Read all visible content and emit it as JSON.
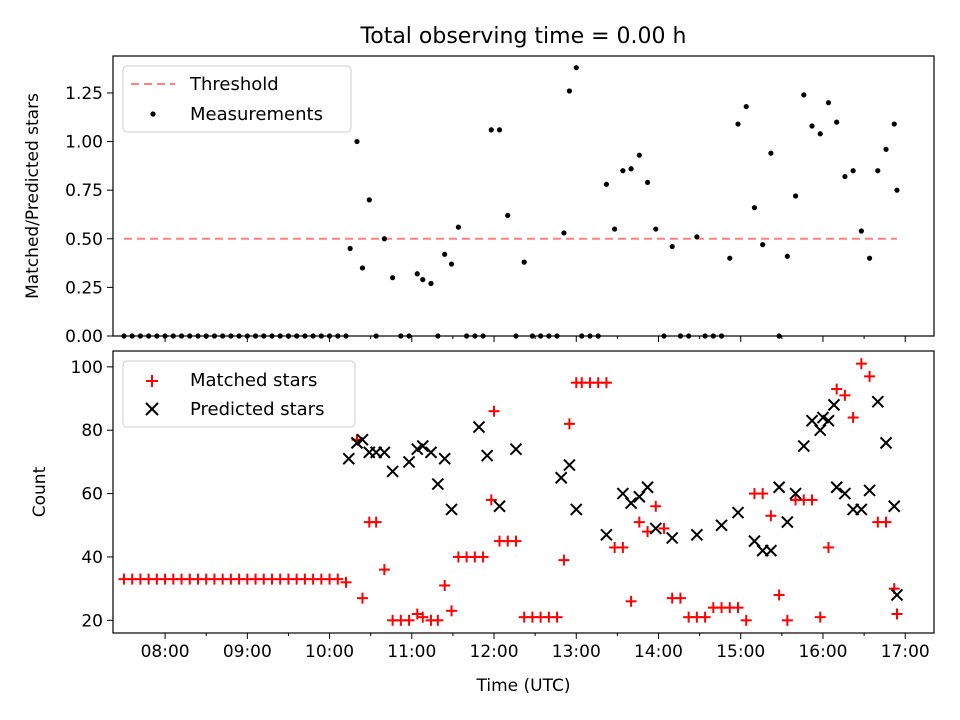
{
  "chart_data": [
    {
      "type": "scatter",
      "title": "Total observing time = 0.00 h",
      "ylabel": "Matched/Predicted stars",
      "xlim": [
        "07:22",
        "17:21"
      ],
      "ylim": [
        0,
        1.44
      ],
      "yticks": [
        "0.00",
        "0.25",
        "0.50",
        "0.75",
        "1.00",
        "1.25"
      ],
      "legend_position": "top-left",
      "series": [
        {
          "name": "Threshold",
          "kind": "dashed-line",
          "color": "#ff8080",
          "x": [
            "07:30",
            "16:54"
          ],
          "y": [
            0.5,
            0.5
          ]
        },
        {
          "name": "Measurements",
          "kind": "points",
          "color": "#000000",
          "x": [
            "07:30",
            "07:36",
            "07:42",
            "07:48",
            "07:54",
            "08:00",
            "08:06",
            "08:12",
            "08:18",
            "08:24",
            "08:30",
            "08:36",
            "08:42",
            "08:48",
            "08:54",
            "09:00",
            "09:06",
            "09:12",
            "09:18",
            "09:24",
            "09:30",
            "09:36",
            "09:42",
            "09:48",
            "09:54",
            "10:00",
            "10:06",
            "10:12",
            "10:15",
            "10:20",
            "10:24",
            "10:29",
            "10:34",
            "10:40",
            "10:46",
            "10:52",
            "10:58",
            "11:04",
            "11:08",
            "11:14",
            "11:19",
            "11:24",
            "11:29",
            "11:34",
            "11:40",
            "11:46",
            "11:52",
            "11:58",
            "12:04",
            "12:10",
            "12:16",
            "12:22",
            "12:28",
            "12:34",
            "12:40",
            "12:46",
            "12:51",
            "12:55",
            "13:00",
            "13:04",
            "13:10",
            "13:16",
            "13:22",
            "13:28",
            "13:34",
            "13:40",
            "13:46",
            "13:52",
            "13:58",
            "14:04",
            "14:10",
            "14:16",
            "14:22",
            "14:28",
            "14:34",
            "14:40",
            "14:46",
            "14:52",
            "14:58",
            "15:04",
            "15:10",
            "15:16",
            "15:22",
            "15:28",
            "15:34",
            "15:40",
            "15:46",
            "15:52",
            "15:58",
            "16:04",
            "16:10",
            "16:16",
            "16:22",
            "16:28",
            "16:34",
            "16:40",
            "16:46",
            "16:52",
            "16:54"
          ],
          "y": [
            0,
            0,
            0,
            0,
            0,
            0,
            0,
            0,
            0,
            0,
            0,
            0,
            0,
            0,
            0,
            0,
            0,
            0,
            0,
            0,
            0,
            0,
            0,
            0,
            0,
            0,
            0,
            0,
            0.45,
            1.0,
            0.35,
            0.7,
            0,
            0.5,
            0.3,
            0,
            0,
            0.32,
            0.29,
            0.27,
            0,
            0.42,
            0.37,
            0.56,
            0,
            0,
            0,
            1.06,
            1.06,
            0.62,
            0,
            0.38,
            0,
            0,
            0,
            0,
            0.53,
            1.26,
            1.38,
            0,
            0,
            0,
            0.78,
            0.55,
            0.85,
            0.86,
            0.93,
            0.79,
            0.55,
            0,
            0.46,
            0,
            0,
            0.51,
            0,
            0,
            0,
            0.4,
            1.09,
            1.18,
            0.66,
            0.47,
            0.94,
            0,
            0.41,
            0.72,
            1.24,
            1.08,
            1.04,
            1.2,
            1.1,
            0.82,
            0.85,
            0.54,
            0.4,
            0.85,
            0.96,
            1.09,
            0.75
          ],
          "note": ""
        }
      ]
    },
    {
      "type": "scatter",
      "xlabel": "Time (UTC)",
      "ylabel": "Count",
      "xlim": [
        "07:22",
        "17:21"
      ],
      "ylim": [
        16,
        105
      ],
      "xticks": [
        "08:00",
        "09:00",
        "10:00",
        "11:00",
        "12:00",
        "13:00",
        "14:00",
        "15:00",
        "16:00",
        "17:00"
      ],
      "yticks": [
        "20",
        "40",
        "60",
        "80",
        "100"
      ],
      "legend_position": "top-left",
      "series": [
        {
          "name": "Matched stars",
          "marker": "plus",
          "color": "#ff0000",
          "x": [
            "07:30",
            "07:36",
            "07:42",
            "07:48",
            "07:54",
            "08:00",
            "08:06",
            "08:12",
            "08:18",
            "08:24",
            "08:30",
            "08:36",
            "08:42",
            "08:48",
            "08:54",
            "09:00",
            "09:06",
            "09:12",
            "09:18",
            "09:24",
            "09:30",
            "09:36",
            "09:42",
            "09:48",
            "09:54",
            "10:00",
            "10:06",
            "10:12",
            "10:20",
            "10:24",
            "10:29",
            "10:34",
            "10:40",
            "10:46",
            "10:52",
            "10:58",
            "11:04",
            "11:08",
            "11:14",
            "11:19",
            "11:24",
            "11:29",
            "11:34",
            "11:40",
            "11:46",
            "11:52",
            "11:58",
            "12:00",
            "12:04",
            "12:10",
            "12:16",
            "12:22",
            "12:28",
            "12:34",
            "12:40",
            "12:46",
            "12:51",
            "12:55",
            "13:00",
            "13:04",
            "13:10",
            "13:16",
            "13:22",
            "13:28",
            "13:34",
            "13:40",
            "13:46",
            "13:52",
            "13:58",
            "14:04",
            "14:10",
            "14:16",
            "14:22",
            "14:28",
            "14:34",
            "14:40",
            "14:46",
            "14:52",
            "14:58",
            "15:04",
            "15:10",
            "15:16",
            "15:22",
            "15:28",
            "15:34",
            "15:40",
            "15:46",
            "15:52",
            "15:58",
            "16:04",
            "16:10",
            "16:16",
            "16:22",
            "16:28",
            "16:34",
            "16:40",
            "16:46",
            "16:52",
            "16:54"
          ],
          "y": [
            33,
            33,
            33,
            33,
            33,
            33,
            33,
            33,
            33,
            33,
            33,
            33,
            33,
            33,
            33,
            33,
            33,
            33,
            33,
            33,
            33,
            33,
            33,
            33,
            33,
            33,
            33,
            32,
            77,
            27,
            51,
            51,
            36,
            20,
            20,
            20,
            22,
            21,
            20,
            20,
            31,
            23,
            40,
            40,
            40,
            40,
            58,
            86,
            45,
            45,
            45,
            21,
            21,
            21,
            21,
            21,
            39,
            82,
            95,
            95,
            95,
            95,
            95,
            43,
            43,
            26,
            51,
            48,
            56,
            49,
            27,
            27,
            21,
            21,
            21,
            24,
            24,
            24,
            24,
            20,
            60,
            60,
            53,
            28,
            20,
            58,
            58,
            58,
            21,
            43,
            93,
            91,
            84,
            101,
            97,
            51,
            51,
            30,
            22
          ],
          "note": ""
        },
        {
          "name": "Predicted stars",
          "marker": "x",
          "color": "#000000",
          "x": [
            "10:14",
            "10:20",
            "10:24",
            "10:29",
            "10:34",
            "10:40",
            "10:46",
            "10:58",
            "11:04",
            "11:08",
            "11:14",
            "11:19",
            "11:24",
            "11:29",
            "11:49",
            "11:55",
            "12:04",
            "12:16",
            "12:49",
            "12:55",
            "13:00",
            "13:22",
            "13:34",
            "13:40",
            "13:46",
            "13:52",
            "13:58",
            "14:10",
            "14:28",
            "14:46",
            "14:58",
            "15:10",
            "15:16",
            "15:22",
            "15:28",
            "15:34",
            "15:40",
            "15:46",
            "15:52",
            "15:58",
            "16:00",
            "16:04",
            "16:08",
            "16:10",
            "16:16",
            "16:22",
            "16:28",
            "16:34",
            "16:40",
            "16:46",
            "16:52",
            "16:54"
          ],
          "y": [
            71,
            76,
            77,
            73,
            73,
            73,
            67,
            70,
            74,
            75,
            73,
            63,
            71,
            55,
            81,
            72,
            56,
            74,
            65,
            69,
            55,
            47,
            60,
            57,
            59,
            62,
            49,
            46,
            47,
            50,
            54,
            45,
            42,
            42,
            62,
            51,
            60,
            75,
            83,
            80,
            84,
            83,
            88,
            62,
            60,
            55,
            55,
            61,
            89,
            76,
            56,
            28
          ],
          "note": ""
        }
      ]
    }
  ]
}
